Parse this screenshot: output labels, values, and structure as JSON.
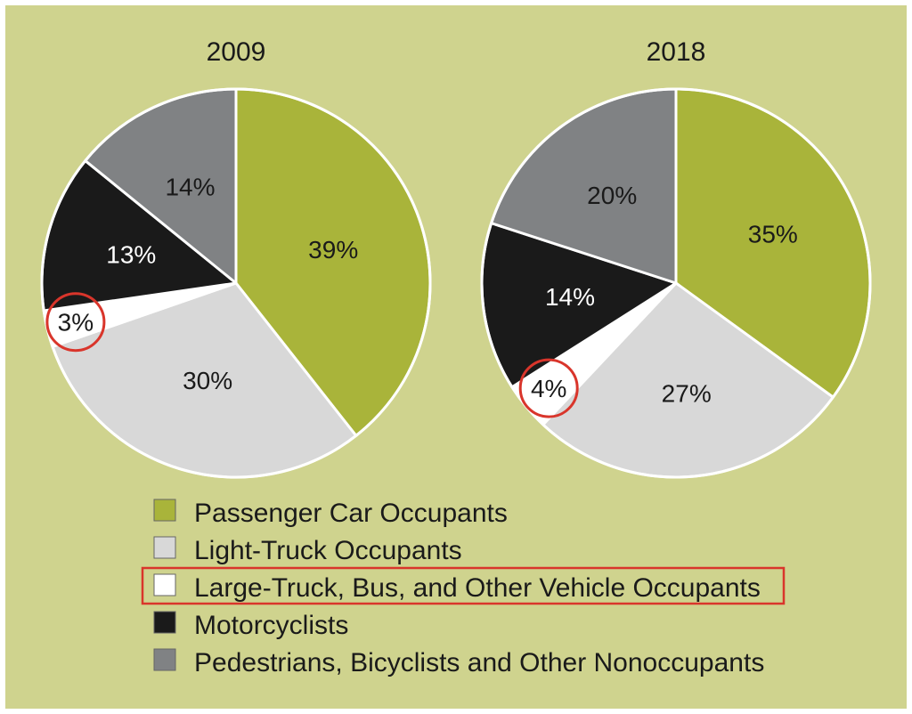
{
  "chart_data": [
    {
      "type": "pie",
      "title": "2009",
      "unit": "%",
      "categories": [
        "Passenger Car Occupants",
        "Light-Truck Occupants",
        "Large-Truck, Bus, and Other Vehicle Occupants",
        "Motorcyclists",
        "Pedestrians, Bicyclists and Other Nonoccupants"
      ],
      "values": [
        39,
        30,
        3,
        13,
        14
      ],
      "labels": [
        "39%",
        "30%",
        "3%",
        "13%",
        "14%"
      ],
      "highlighted_category": "Large-Truck, Bus, and Other Vehicle Occupants"
    },
    {
      "type": "pie",
      "title": "2018",
      "unit": "%",
      "categories": [
        "Passenger Car Occupants",
        "Light-Truck Occupants",
        "Large-Truck, Bus, and Other Vehicle Occupants",
        "Motorcyclists",
        "Pedestrians, Bicyclists and Other Nonoccupants"
      ],
      "values": [
        35,
        27,
        4,
        14,
        20
      ],
      "labels": [
        "35%",
        "27%",
        "4%",
        "14%",
        "20%"
      ],
      "highlighted_category": "Large-Truck, Bus, and Other Vehicle Occupants"
    }
  ],
  "legend": {
    "placement": "bottom",
    "items": [
      {
        "label": "Passenger Car Occupants",
        "color": "#a9b43a",
        "highlighted": false
      },
      {
        "label": "Light-Truck Occupants",
        "color": "#d8d8d8",
        "highlighted": false
      },
      {
        "label": "Large-Truck, Bus, and Other Vehicle Occupants",
        "color": "#ffffff",
        "highlighted": true
      },
      {
        "label": "Motorcyclists",
        "color": "#1a1a1a",
        "highlighted": false
      },
      {
        "label": "Pedestrians, Bicyclists and Other Nonoccupants",
        "color": "#808284",
        "highlighted": false
      }
    ]
  },
  "colors": {
    "background": "#cfd38e",
    "slice_border": "#ffffff",
    "highlight_ring": "#d9352b",
    "label_dark": "#1a1a1a",
    "label_light": "#ffffff"
  }
}
